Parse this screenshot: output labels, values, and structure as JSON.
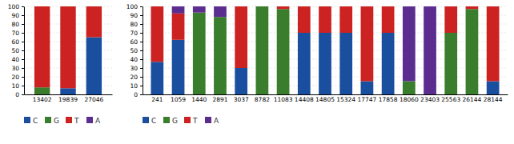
{
  "chart_data": [
    {
      "type": "bar",
      "stacked": true,
      "grid": true,
      "categories": [
        "13402",
        "19839",
        "27046"
      ],
      "series": [
        {
          "name": "C",
          "color": "#1a4fa0",
          "values": [
            0,
            7,
            65
          ]
        },
        {
          "name": "G",
          "color": "#3a7d2c",
          "values": [
            8,
            0,
            0
          ]
        },
        {
          "name": "T",
          "color": "#cc2222",
          "values": [
            92,
            93,
            35
          ]
        },
        {
          "name": "A",
          "color": "#5b2d8e",
          "values": [
            0,
            0,
            0
          ]
        }
      ],
      "ylim": [
        0,
        100
      ],
      "yticks": [
        0,
        10,
        20,
        30,
        40,
        50,
        60,
        70,
        80,
        90,
        100
      ]
    },
    {
      "type": "bar",
      "stacked": true,
      "grid": true,
      "categories": [
        "241",
        "1059",
        "1440",
        "2891",
        "3037",
        "8782",
        "11083",
        "14408",
        "14805",
        "15324",
        "17747",
        "17858",
        "18060",
        "23403",
        "25563",
        "26144",
        "28144"
      ],
      "series": [
        {
          "name": "C",
          "color": "#1a4fa0",
          "values": [
            37,
            62,
            0,
            0,
            30,
            0,
            0,
            70,
            70,
            70,
            15,
            70,
            0,
            0,
            0,
            0,
            15
          ]
        },
        {
          "name": "G",
          "color": "#3a7d2c",
          "values": [
            0,
            0,
            93,
            88,
            0,
            100,
            97,
            0,
            0,
            0,
            0,
            0,
            15,
            0,
            70,
            97,
            0
          ]
        },
        {
          "name": "T",
          "color": "#cc2222",
          "values": [
            63,
            30,
            0,
            0,
            70,
            0,
            3,
            30,
            30,
            30,
            85,
            30,
            0,
            0,
            30,
            3,
            85
          ]
        },
        {
          "name": "A",
          "color": "#5b2d8e",
          "values": [
            0,
            8,
            7,
            12,
            0,
            0,
            0,
            0,
            0,
            0,
            0,
            0,
            85,
            100,
            0,
            0,
            0
          ]
        }
      ],
      "ylim": [
        0,
        100
      ],
      "yticks": [
        0,
        10,
        20,
        30,
        40,
        50,
        60,
        70,
        80,
        90,
        100
      ]
    }
  ]
}
